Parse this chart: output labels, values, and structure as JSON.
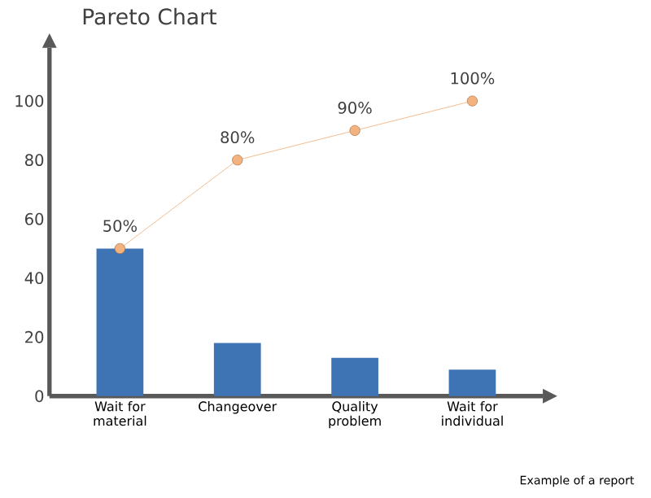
{
  "chart_data": {
    "type": "bar",
    "title": "Pareto Chart",
    "categories": [
      "Wait for material",
      "Changeover",
      "Quality problem",
      "Wait for individual"
    ],
    "series": [
      {
        "color": "#3f74b4",
        "values": [
          50,
          18,
          13,
          9
        ]
      },
      {
        "type": "line",
        "color": "#f0a060",
        "marker": "circle",
        "values": [
          50,
          80,
          90,
          100
        ],
        "value_labels": [
          "50%",
          "80%",
          "90%",
          "100%"
        ]
      }
    ],
    "ylim": [
      0,
      118
    ],
    "yticks": [
      0,
      20,
      40,
      60,
      80,
      100
    ],
    "annotations": [
      "Example of a report"
    ]
  }
}
